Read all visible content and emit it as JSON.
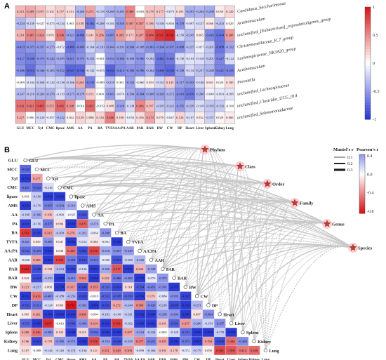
{
  "panelA": {
    "letter": "A",
    "rows": [
      "Candidatus_Saccharimonas",
      "Acetitomaculum",
      "unclassified_[Eubacterium]_coprostanoligenes_group",
      "Christensenellaceae_R_7_group",
      "Lachnospiraceae_NK3A20_group",
      "Acetitomaculum",
      "Prevotella",
      "unclassified_Lachnospiraceae",
      "unclassified_Clostridia_UCG_014",
      "unclassified_Selenomonadaceae"
    ],
    "columns": [
      "GLU",
      "MCC",
      "Xyl",
      "CMC",
      "lipase",
      "AMS",
      "AA",
      "PA",
      "BA",
      "TVFA",
      "AA:PA",
      "AAR",
      "PAR",
      "BAR",
      "BW",
      "CW",
      "DP",
      "Heart",
      "Liver",
      "Spleen",
      "Kidney",
      "Lung"
    ],
    "values": [
      [
        0.215,
        0.269,
        0.197,
        0.102,
        0.157,
        0.101,
        -0.26,
        0.271,
        -0.158,
        -0.268,
        -0.285,
        0.369,
        -0.003,
        0.178,
        0.177,
        -0.079,
        0.105,
        -0.291,
        -0.264,
        -0.298,
        0.058,
        0.12
      ],
      [
        -0.254,
        -0.159,
        -0.027,
        -0.075,
        -0.134,
        0.003,
        0.158,
        -0.462,
        -0.208,
        -0.101,
        -0.35,
        0.307,
        0.307,
        0.186,
        -0.156,
        -0.056,
        -0.379,
        -0.097,
        -0.127,
        0.066,
        -0.203,
        0.02
      ],
      [
        0.219,
        0.365,
        0.324,
        0.076,
        0.396,
        -0.322,
        -0.46,
        0.141,
        0.266,
        -0.387,
        0.305,
        0.171,
        0.287,
        0.484,
        0.611,
        0.65,
        -0.15,
        -0.245,
        0.065,
        -0.416,
        -0.494,
        0.3
      ],
      [
        -0.413,
        -0.375,
        -0.357,
        -0.275,
        -0.072,
        -0.486,
        -0.409,
        -0.164,
        -0.23,
        -0.344,
        -0.293,
        -0.364,
        -0.308,
        -0.383,
        -0.394,
        -0.397,
        -0.408,
        -0.237,
        -0.057,
        -0.201,
        -0.488,
        -0.312
      ],
      [
        -0.417,
        -0.458,
        -0.375,
        -0.324,
        -0.295,
        -0.411,
        -0.375,
        -0.253,
        -0.001,
        -0.354,
        -0.38,
        -0.308,
        -0.38,
        -0.202,
        -0.482,
        -0.462,
        -0.13,
        -0.103,
        -0.118,
        -0.201,
        -0.427,
        -0.122
      ],
      [
        -0.386,
        -0.515,
        -0.346,
        -0.283,
        -0.352,
        -0.547,
        -0.536,
        -0.142,
        -0.053,
        -0.552,
        -0.413,
        -0.384,
        -0.396,
        -0.264,
        -0.496,
        -0.536,
        -0.33,
        -0.134,
        -0.217,
        -0.268,
        -0.441,
        -0.435
      ],
      [
        -0.009,
        -0.104,
        -0.168,
        -0.124,
        -0.138,
        -0.166,
        0.244,
        -0.435,
        -0.009,
        -0.218,
        0.003,
        -0.324,
        -0.06,
        0.05,
        -0.132,
        0.145,
        -0.317,
        -0.353,
        -0.136,
        0.061,
        0.02,
        0.1
      ],
      [
        -0.247,
        -0.216,
        -0.26,
        -0.276,
        -0.11,
        -0.275,
        -0.278,
        0.151,
        0.004,
        -0.343,
        -0.074,
        -0.284,
        -0.364,
        -0.308,
        -0.328,
        -0.272,
        -0.41,
        -0.476,
        -0.26,
        -0.049,
        -0.093,
        -0.095
      ],
      [
        0.432,
        0.421,
        0.495,
        0.272,
        0.465,
        0.338,
        -0.014,
        0.451,
        -0.019,
        0.088,
        -0.328,
        -0.138,
        0.366,
        0.197,
        -0.195,
        -0.222,
        -0.355,
        -0.229,
        -0.118,
        -0.195,
        -0.192,
        -0.01
      ],
      [
        0.227,
        0.006,
        -0.12,
        -0.057,
        -0.232,
        0.042,
        0.129,
        0.08,
        0.134,
        0.386,
        0.106,
        -0.054,
        0.106,
        0.273,
        0.07,
        -0.047,
        0.126,
        -0.107,
        0.052,
        -0.157,
        0.029,
        0.06
      ]
    ],
    "colorbar_ticks": [
      "1",
      "0.5",
      "0",
      "-0.5",
      "-1"
    ],
    "colors": {
      "pos": "#d7191c",
      "neu": "#ffffff",
      "neg": "#2b3bd6"
    }
  },
  "panelB": {
    "letter": "B",
    "variables": [
      "GLU",
      "MCC",
      "Xyl",
      "CMC",
      "lipase",
      "AMS",
      "AA",
      "PA",
      "BA",
      "TVFA",
      "AA:PA",
      "AAR",
      "PAR",
      "BAR",
      "BW",
      "CW",
      "DP",
      "Heart",
      "Liver",
      "Spleen",
      "Kidney",
      "Lung"
    ],
    "bottom_row": [
      0.107,
      -0.008,
      -0.144,
      -0.14,
      -0.174,
      -0.136,
      0.121,
      0.331,
      0.349,
      0.309,
      -0.099,
      -0.166,
      0.191,
      0.178,
      -0.072,
      -0.179,
      0.05,
      0.56,
      0.508,
      0.414,
      0.458,
      ""
    ],
    "taxa": [
      "Phylum",
      "Class",
      "Order",
      "Family",
      "Genus",
      "Species"
    ],
    "legend": {
      "mantel_title": "Mantel's r",
      "mantel_values": [
        "0.1",
        "0.2",
        "0.3"
      ],
      "pearson_title": "Pearson's r",
      "pearson_ticks": [
        "0.4",
        "0.0",
        "-0.4",
        "-0.8"
      ]
    }
  }
}
